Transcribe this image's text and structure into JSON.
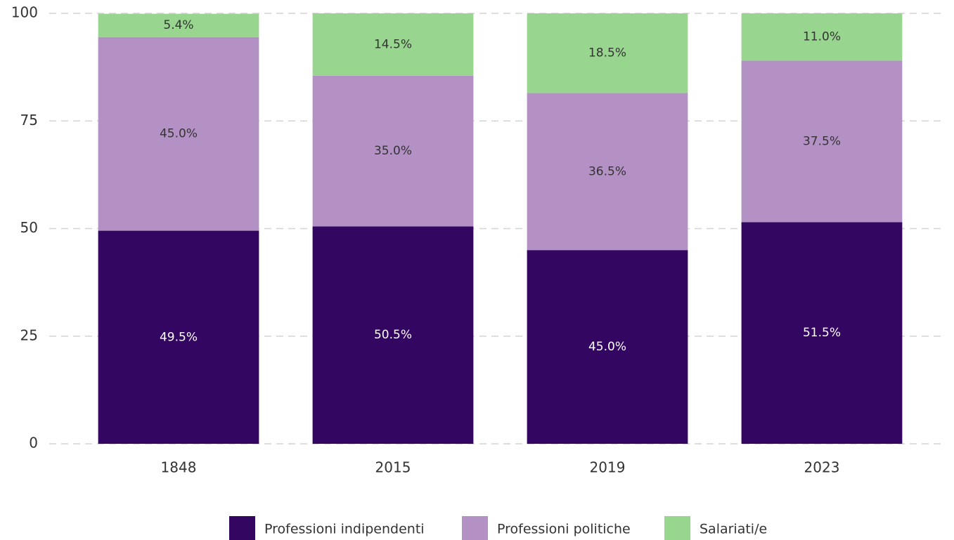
{
  "chart_data": {
    "type": "stacked_bar",
    "categories": [
      "1848",
      "2015",
      "2019",
      "2023"
    ],
    "series": [
      {
        "name": "Professioni indipendenti",
        "color": "#330662",
        "values": [
          49.5,
          50.5,
          45.0,
          51.5
        ],
        "value_labels": [
          "49.5%",
          "50.5%",
          "45.0%",
          "51.5%"
        ]
      },
      {
        "name": "Professioni politiche",
        "color": "#b491c5",
        "values": [
          45.0,
          35.0,
          36.5,
          37.5
        ],
        "value_labels": [
          "45.0%",
          "35.0%",
          "36.5%",
          "37.5%"
        ]
      },
      {
        "name": "Salariati/e",
        "color": "#98d58f",
        "values": [
          5.4,
          14.5,
          18.5,
          11.0
        ],
        "value_labels": [
          "5.4%",
          "14.5%",
          "18.5%",
          "11.0%"
        ]
      }
    ],
    "ylim": [
      0,
      100
    ],
    "yticks": [
      0,
      25,
      50,
      75,
      100
    ],
    "grid": true,
    "legend": "bottom"
  }
}
